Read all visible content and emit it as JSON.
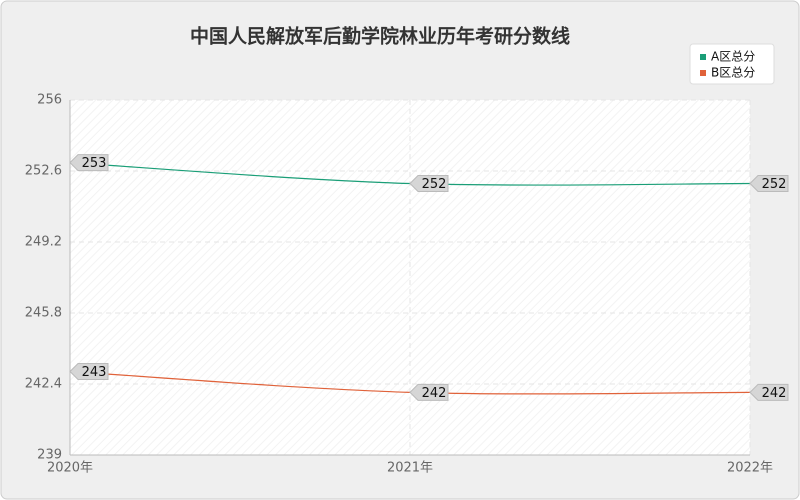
{
  "chart_data": {
    "type": "line",
    "title": "中国人民解放军后勤学院林业历年考研分数线",
    "categories": [
      "2020年",
      "2021年",
      "2022年"
    ],
    "series": [
      {
        "name": "A区总分",
        "color": "#1a9e77",
        "values": [
          253,
          252,
          252
        ]
      },
      {
        "name": "B区总分",
        "color": "#e0623a",
        "values": [
          243,
          242,
          242
        ]
      }
    ],
    "ylim": [
      239,
      256
    ],
    "yticks": [
      239,
      242.4,
      245.8,
      249.2,
      252.6,
      256
    ],
    "grid": true,
    "legend": "top-right"
  }
}
